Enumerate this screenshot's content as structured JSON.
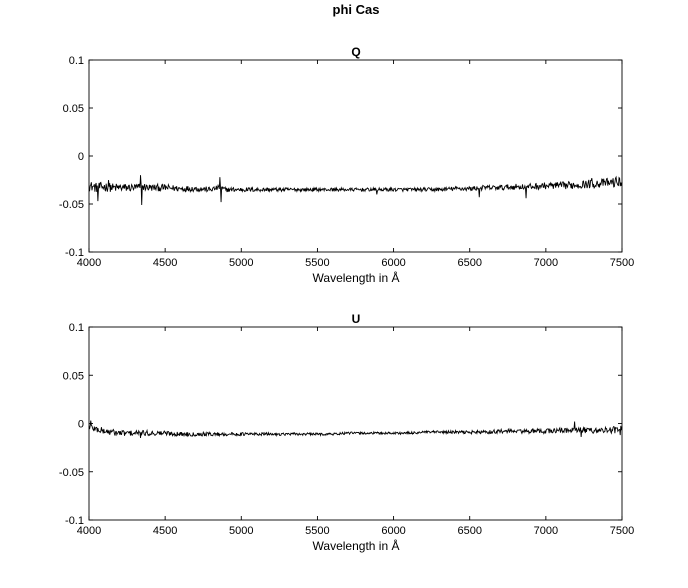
{
  "figure": {
    "title": "phi Cas"
  },
  "chart_data": [
    {
      "type": "line",
      "title": "Q",
      "xlabel": "Wavelength in Å",
      "ylabel": "",
      "xlim": [
        4000,
        7500
      ],
      "ylim": [
        -0.1,
        0.1
      ],
      "xticks": [
        4000,
        4500,
        5000,
        5500,
        6000,
        6500,
        7000,
        7500
      ],
      "yticks": [
        -0.1,
        -0.05,
        0,
        0.05,
        0.1
      ],
      "xtick_labels": [
        "4000",
        "4500",
        "5000",
        "5500",
        "6000",
        "6500",
        "7000",
        "7500"
      ],
      "ytick_labels": [
        "-0.1",
        "-0.05",
        "0",
        "0.05",
        "0.1"
      ],
      "grid": false,
      "series": [
        {
          "x": [
            4000,
            4050,
            4100,
            4150,
            4200,
            4250,
            4300,
            4350,
            4400,
            4450,
            4500,
            4600,
            4700,
            4800,
            4850,
            4900,
            5000,
            5100,
            5200,
            5300,
            5400,
            5500,
            5600,
            5700,
            5800,
            5900,
            6000,
            6100,
            6200,
            6300,
            6400,
            6500,
            6600,
            6700,
            6800,
            6900,
            7000,
            7100,
            7200,
            7300,
            7400,
            7500
          ],
          "y": [
            -0.031,
            -0.033,
            -0.032,
            -0.033,
            -0.033,
            -0.033,
            -0.033,
            -0.032,
            -0.033,
            -0.033,
            -0.033,
            -0.034,
            -0.034,
            -0.035,
            -0.033,
            -0.035,
            -0.035,
            -0.035,
            -0.035,
            -0.035,
            -0.035,
            -0.035,
            -0.035,
            -0.035,
            -0.035,
            -0.035,
            -0.035,
            -0.035,
            -0.035,
            -0.035,
            -0.034,
            -0.034,
            -0.033,
            -0.033,
            -0.032,
            -0.032,
            -0.031,
            -0.031,
            -0.03,
            -0.029,
            -0.028,
            -0.027
          ],
          "spikes": [
            {
              "x": 4060,
              "y": -0.047
            },
            {
              "x": 4130,
              "y": -0.025
            },
            {
              "x": 4340,
              "y": -0.02
            },
            {
              "x": 4345,
              "y": -0.051
            },
            {
              "x": 4861,
              "y": -0.022
            },
            {
              "x": 4866,
              "y": -0.048
            },
            {
              "x": 5890,
              "y": -0.04
            },
            {
              "x": 6563,
              "y": -0.043
            },
            {
              "x": 6870,
              "y": -0.044
            },
            {
              "x": 7300,
              "y": -0.023
            },
            {
              "x": 7460,
              "y": -0.022
            }
          ],
          "noise": 0.0025
        }
      ]
    },
    {
      "type": "line",
      "title": "U",
      "xlabel": "Wavelength in Å",
      "ylabel": "",
      "xlim": [
        4000,
        7500
      ],
      "ylim": [
        -0.1,
        0.1
      ],
      "xticks": [
        4000,
        4500,
        5000,
        5500,
        6000,
        6500,
        7000,
        7500
      ],
      "yticks": [
        -0.1,
        -0.05,
        0,
        0.05,
        0.1
      ],
      "xtick_labels": [
        "4000",
        "4500",
        "5000",
        "5500",
        "6000",
        "6500",
        "7000",
        "7500"
      ],
      "ytick_labels": [
        "-0.1",
        "-0.05",
        "0",
        "0.05",
        "0.1"
      ],
      "grid": false,
      "series": [
        {
          "x": [
            4000,
            4050,
            4100,
            4150,
            4200,
            4300,
            4400,
            4500,
            4600,
            4700,
            4800,
            4900,
            5000,
            5100,
            5200,
            5300,
            5400,
            5500,
            5600,
            5700,
            5800,
            5900,
            6000,
            6100,
            6200,
            6300,
            6400,
            6500,
            6600,
            6700,
            6800,
            6900,
            7000,
            7100,
            7200,
            7300,
            7400,
            7500
          ],
          "y": [
            -0.003,
            -0.006,
            -0.008,
            -0.009,
            -0.01,
            -0.01,
            -0.01,
            -0.01,
            -0.011,
            -0.011,
            -0.011,
            -0.011,
            -0.011,
            -0.011,
            -0.011,
            -0.011,
            -0.011,
            -0.011,
            -0.011,
            -0.01,
            -0.01,
            -0.01,
            -0.01,
            -0.01,
            -0.009,
            -0.009,
            -0.009,
            -0.009,
            -0.009,
            -0.008,
            -0.008,
            -0.008,
            -0.008,
            -0.007,
            -0.007,
            -0.007,
            -0.007,
            -0.006
          ],
          "spikes": [
            {
              "x": 4010,
              "y": 0.003
            },
            {
              "x": 4340,
              "y": -0.015
            },
            {
              "x": 7190,
              "y": 0.002
            },
            {
              "x": 7230,
              "y": -0.014
            },
            {
              "x": 7490,
              "y": -0.012
            }
          ],
          "noise": 0.0018
        }
      ]
    }
  ]
}
